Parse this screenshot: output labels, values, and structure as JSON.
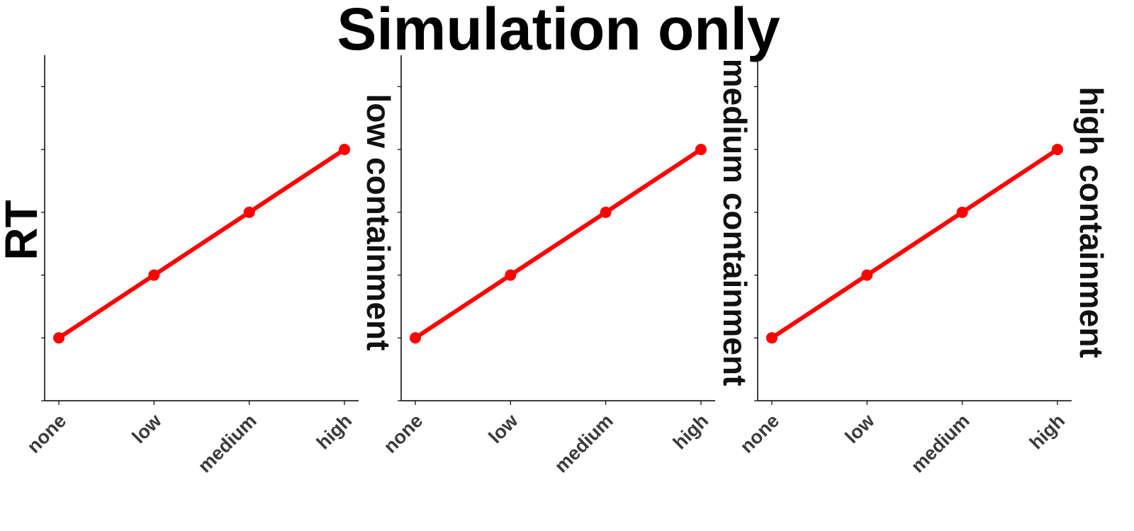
{
  "chart_data": {
    "type": "line",
    "title": "Simulation only",
    "ylabel": "RT",
    "xlabel": "",
    "categories": [
      "none",
      "low",
      "medium",
      "high"
    ],
    "y_ticks_labeled": false,
    "grid": false,
    "legend": "none",
    "line_color": "#ff0000",
    "panels": [
      {
        "strip_label": "low containment",
        "values": [
          1,
          2,
          3,
          4
        ]
      },
      {
        "strip_label": "medium containment",
        "values": [
          1,
          2,
          3,
          4
        ]
      },
      {
        "strip_label": "high containment",
        "values": [
          1,
          2,
          3,
          4
        ]
      }
    ],
    "ylim": [
      0,
      5.5
    ]
  }
}
